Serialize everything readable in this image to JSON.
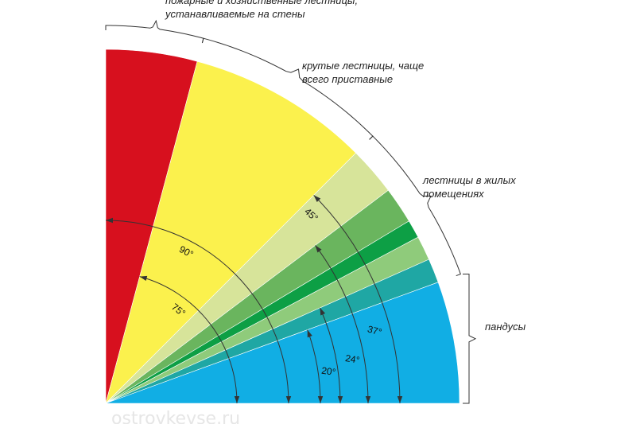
{
  "diagram": {
    "colors": {
      "red": "#d7101e",
      "yellow": "#fbf14d",
      "pale_green": "#d7e49a",
      "mid_green": "#6ab55e",
      "dark_green": "#0d9f45",
      "light_green": "#8fcb7b",
      "teal": "#1fa7a4",
      "blue": "#11aee4",
      "line": "#333333"
    },
    "sectors": [
      {
        "name": "sector-red",
        "from_deg": 75,
        "to_deg": 90,
        "color": "red"
      },
      {
        "name": "sector-yellow",
        "from_deg": 45,
        "to_deg": 75,
        "color": "yellow"
      },
      {
        "name": "sector-pale-green",
        "from_deg": 37,
        "to_deg": 45,
        "color": "pale_green"
      },
      {
        "name": "sector-mid-green",
        "from_deg": 31,
        "to_deg": 37,
        "color": "mid_green"
      },
      {
        "name": "sector-dark-green",
        "from_deg": 28,
        "to_deg": 31,
        "color": "dark_green"
      },
      {
        "name": "sector-light-green",
        "from_deg": 24,
        "to_deg": 28,
        "color": "light_green"
      },
      {
        "name": "sector-teal",
        "from_deg": 20,
        "to_deg": 24,
        "color": "teal"
      },
      {
        "name": "sector-blue",
        "from_deg": 0,
        "to_deg": 20,
        "color": "blue"
      }
    ],
    "angles": [
      {
        "value": 90,
        "label": "90°"
      },
      {
        "value": 75,
        "label": "75°"
      },
      {
        "value": 45,
        "label": "45°"
      },
      {
        "value": 37,
        "label": "37°"
      },
      {
        "value": 24,
        "label": "24°"
      },
      {
        "value": 20,
        "label": "20°"
      }
    ],
    "categories": [
      {
        "lines": [
          "пожарные и хозяйственные лестницы,",
          "устанавливаемые на стены"
        ],
        "from_deg": 75,
        "to_deg": 90
      },
      {
        "lines": [
          "крутые лестницы, чаще",
          "всего приставные"
        ],
        "from_deg": 45,
        "to_deg": 75
      },
      {
        "lines": [
          "лестницы в жилых",
          "помещениях"
        ],
        "from_deg": 20,
        "to_deg": 45
      },
      {
        "lines": [
          "пандусы"
        ],
        "from_deg": 0,
        "to_deg": 20
      }
    ],
    "watermark": "ostrovkevse.ru"
  }
}
